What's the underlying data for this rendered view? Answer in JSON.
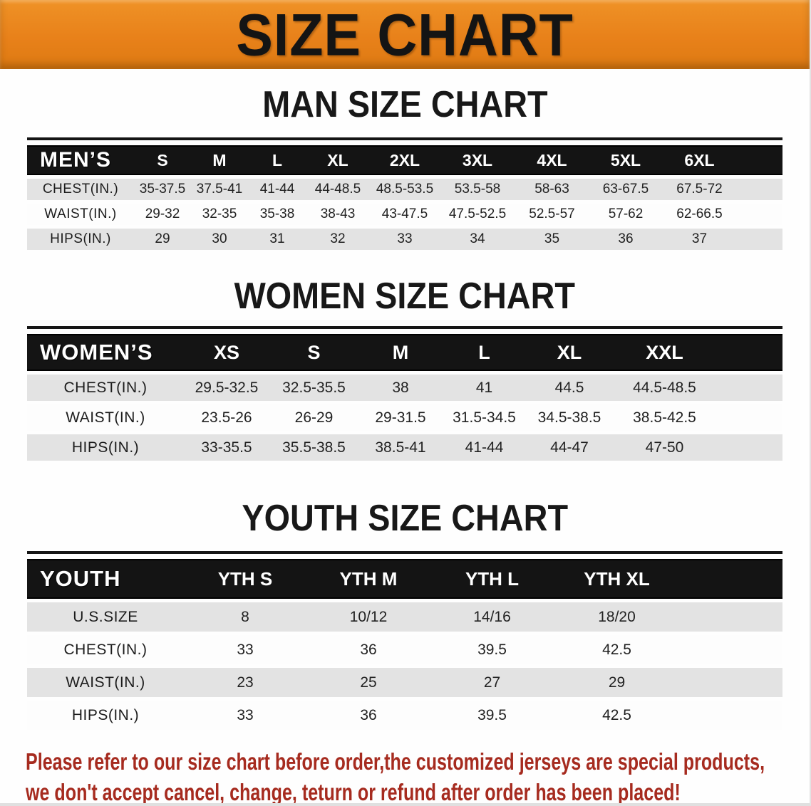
{
  "banner": {
    "title": "SIZE CHART"
  },
  "colors": {
    "banner_orange": "#E8811A",
    "header_black": "#141414",
    "row_gray": "#E3E3E3",
    "disclaimer_red": "#A62B1F"
  },
  "sections": [
    {
      "id": "men",
      "title": "MAN SIZE CHART",
      "table": {
        "header_label": "MEN’S",
        "columns": [
          "S",
          "M",
          "L",
          "XL",
          "2XL",
          "3XL",
          "4XL",
          "5XL",
          "6XL"
        ],
        "rows": [
          {
            "label": "CHEST(IN.)",
            "values": [
              "35-37.5",
              "37.5-41",
              "41-44",
              "44-48.5",
              "48.5-53.5",
              "53.5-58",
              "58-63",
              "63-67.5",
              "67.5-72"
            ]
          },
          {
            "label": "WAIST(IN.)",
            "values": [
              "29-32",
              "32-35",
              "35-38",
              "38-43",
              "43-47.5",
              "47.5-52.5",
              "52.5-57",
              "57-62",
              "62-66.5"
            ]
          },
          {
            "label": "HIPS(IN.)",
            "values": [
              "29",
              "30",
              "31",
              "32",
              "33",
              "34",
              "35",
              "36",
              "37"
            ]
          }
        ]
      }
    },
    {
      "id": "women",
      "title": "WOMEN SIZE CHART",
      "table": {
        "header_label": "WOMEN’S",
        "columns": [
          "XS",
          "S",
          "M",
          "L",
          "XL",
          "XXL"
        ],
        "rows": [
          {
            "label": "CHEST(IN.)",
            "values": [
              "29.5-32.5",
              "32.5-35.5",
              "38",
              "41",
              "44.5",
              "44.5-48.5"
            ]
          },
          {
            "label": "WAIST(IN.)",
            "values": [
              "23.5-26",
              "26-29",
              "29-31.5",
              "31.5-34.5",
              "34.5-38.5",
              "38.5-42.5"
            ]
          },
          {
            "label": "HIPS(IN.)",
            "values": [
              "33-35.5",
              "35.5-38.5",
              "38.5-41",
              "41-44",
              "44-47",
              "47-50"
            ]
          }
        ]
      }
    },
    {
      "id": "youth",
      "title": "YOUTH SIZE CHART",
      "table": {
        "header_label": "YOUTH",
        "columns": [
          "YTH S",
          "YTH M",
          "YTH L",
          "YTH XL"
        ],
        "rows": [
          {
            "label": "U.S.SIZE",
            "values": [
              "8",
              "10/12",
              "14/16",
              "18/20"
            ]
          },
          {
            "label": "CHEST(IN.)",
            "values": [
              "33",
              "36",
              "39.5",
              "42.5"
            ]
          },
          {
            "label": "WAIST(IN.)",
            "values": [
              "23",
              "25",
              "27",
              "29"
            ]
          },
          {
            "label": "HIPS(IN.)",
            "values": [
              "33",
              "36",
              "39.5",
              "42.5"
            ]
          }
        ]
      }
    }
  ],
  "disclaimer": {
    "lines": [
      "Please refer to our size chart before order,the customized jerseys are special products,",
      "we don't accept cancel, change, teturn or refund after order has been placed!"
    ]
  }
}
